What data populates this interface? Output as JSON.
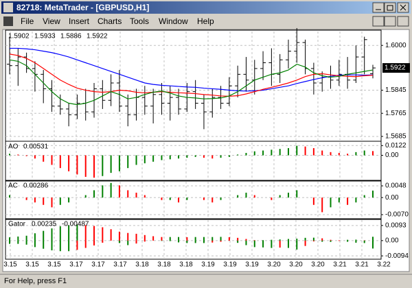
{
  "window": {
    "title": "82718: MetaTrader - [GBPUSD,H1]",
    "menu": [
      "File",
      "View",
      "Insert",
      "Charts",
      "Tools",
      "Window",
      "Help"
    ]
  },
  "status_bar": "For Help, press F1",
  "time_labels": [
    "3.15",
    "3.15",
    "3.15",
    "3.17",
    "3.17",
    "3.17",
    "3.18",
    "3.18",
    "3.18",
    "3.19",
    "3.19",
    "3.19",
    "3.20",
    "3.20",
    "3.20",
    "3.21",
    "3.21",
    "3.22"
  ],
  "chart_data": [
    {
      "type": "ohlc",
      "color": "#000000",
      "grid": true,
      "ylim": [
        1.5673,
        1.6048
      ],
      "yticks": [
        {
          "value": 1.6,
          "label": "1.6000"
        },
        1.5845,
        1.5765,
        1.5685
      ],
      "open": [
        1.5935,
        1.593,
        1.596,
        1.592,
        1.59,
        1.585,
        1.579,
        1.578,
        1.576,
        1.58,
        1.577,
        1.585,
        1.581,
        1.587,
        1.579,
        1.576,
        1.582,
        1.579,
        1.583,
        1.58,
        1.582,
        1.578,
        1.584,
        1.58,
        1.577,
        1.582,
        1.58,
        1.586,
        1.59,
        1.588,
        1.592,
        1.594,
        1.59,
        1.595,
        1.598,
        1.601,
        1.592,
        1.587,
        1.589,
        1.588,
        1.59,
        1.588,
        1.596,
        1.5902
      ],
      "high": [
        1.603,
        1.599,
        1.5975,
        1.5945,
        1.5915,
        1.588,
        1.583,
        1.58,
        1.583,
        1.585,
        1.587,
        1.588,
        1.59,
        1.5915,
        1.583,
        1.585,
        1.586,
        1.585,
        1.587,
        1.586,
        1.585,
        1.587,
        1.588,
        1.583,
        1.585,
        1.586,
        1.589,
        1.593,
        1.596,
        1.595,
        1.598,
        1.599,
        1.597,
        1.602,
        1.606,
        1.602,
        1.594,
        1.591,
        1.593,
        1.595,
        1.596,
        1.6,
        1.603,
        1.5933
      ],
      "low": [
        1.59,
        1.586,
        1.5905,
        1.584,
        1.58,
        1.577,
        1.576,
        1.572,
        1.5745,
        1.574,
        1.575,
        1.578,
        1.579,
        1.577,
        1.572,
        1.574,
        1.576,
        1.573,
        1.576,
        1.574,
        1.576,
        1.577,
        1.578,
        1.571,
        1.575,
        1.578,
        1.579,
        1.582,
        1.584,
        1.583,
        1.588,
        1.586,
        1.587,
        1.592,
        1.594,
        1.59,
        1.583,
        1.584,
        1.585,
        1.586,
        1.585,
        1.587,
        1.59,
        1.5886
      ],
      "close": [
        1.593,
        1.596,
        1.592,
        1.59,
        1.585,
        1.579,
        1.578,
        1.576,
        1.58,
        1.577,
        1.585,
        1.581,
        1.587,
        1.579,
        1.576,
        1.582,
        1.579,
        1.583,
        1.58,
        1.582,
        1.578,
        1.584,
        1.58,
        1.577,
        1.582,
        1.58,
        1.586,
        1.59,
        1.588,
        1.592,
        1.594,
        1.59,
        1.595,
        1.598,
        1.601,
        1.592,
        1.587,
        1.589,
        1.588,
        1.59,
        1.588,
        1.596,
        1.602,
        1.5922
      ],
      "series": [
        {
          "color": "#0000ff",
          "values": [
            1.599,
            1.599,
            1.5988,
            1.5985,
            1.598,
            1.5975,
            1.5968,
            1.596,
            1.595,
            1.594,
            1.593,
            1.592,
            1.591,
            1.59,
            1.589,
            1.588,
            1.587,
            1.5865,
            1.5862,
            1.586,
            1.5858,
            1.5856,
            1.5855,
            1.5852,
            1.585,
            1.5848,
            1.5845,
            1.5843,
            1.5842,
            1.5843,
            1.5845,
            1.585,
            1.5855,
            1.586,
            1.5868,
            1.5875,
            1.5882,
            1.5888,
            1.5893,
            1.5897,
            1.5898,
            1.5898,
            1.5897,
            1.5898
          ]
        },
        {
          "color": "#ff0000",
          "values": [
            1.597,
            1.5965,
            1.5955,
            1.594,
            1.592,
            1.59,
            1.588,
            1.5865,
            1.5852,
            1.5845,
            1.584,
            1.5838,
            1.584,
            1.5845,
            1.5843,
            1.5838,
            1.5836,
            1.5838,
            1.584,
            1.5838,
            1.5836,
            1.5835,
            1.5833,
            1.583,
            1.5828,
            1.5825,
            1.5824,
            1.5826,
            1.5832,
            1.584,
            1.5848,
            1.5855,
            1.5862,
            1.587,
            1.588,
            1.5892,
            1.59,
            1.5902,
            1.5898,
            1.5895,
            1.5893,
            1.5892,
            1.5895,
            1.5897
          ]
        },
        {
          "color": "#008000",
          "values": [
            1.595,
            1.5945,
            1.593,
            1.59,
            1.587,
            1.584,
            1.5815,
            1.58,
            1.5795,
            1.58,
            1.581,
            1.5825,
            1.584,
            1.583,
            1.5815,
            1.582,
            1.583,
            1.5838,
            1.5842,
            1.5835,
            1.5825,
            1.582,
            1.5818,
            1.5815,
            1.5816,
            1.5818,
            1.5825,
            1.584,
            1.586,
            1.588,
            1.589,
            1.59,
            1.5905,
            1.5915,
            1.5935,
            1.5925,
            1.5905,
            1.5895,
            1.589,
            1.5893,
            1.59,
            1.5905,
            1.591,
            1.5915
          ]
        }
      ]
    },
    {
      "type": "oscillator",
      "title": "AO",
      "up_color": "#008000",
      "down_color": "#ff0000",
      "ylim": [
        -0.0305,
        0.0159
      ],
      "yticks": [
        0.0122,
        {
          "value": 0,
          "label": "0.00"
        }
      ],
      "values": [
        0.002,
        0.001,
        -0.001,
        -0.004,
        -0.008,
        -0.012,
        -0.016,
        -0.02,
        -0.024,
        -0.027,
        -0.028,
        -0.026,
        -0.022,
        -0.02,
        -0.016,
        -0.012,
        -0.01,
        -0.008,
        -0.006,
        -0.005,
        -0.004,
        -0.003,
        -0.002,
        -0.003,
        -0.004,
        -0.003,
        -0.002,
        0.001,
        0.003,
        0.005,
        0.006,
        0.007,
        0.008,
        0.009,
        0.012,
        0.011,
        0.009,
        0.006,
        0.004,
        0.003,
        0.002,
        0.004,
        0.006,
        0.00531
      ]
    },
    {
      "type": "oscillator",
      "title": "AC",
      "up_color": "#008000",
      "down_color": "#ff0000",
      "ylim": [
        -0.0084,
        0.0065
      ],
      "yticks": [
        0.0048,
        {
          "value": 0,
          "label": "0.00"
        },
        {
          "value": -0.007,
          "label": "-0.0070"
        }
      ],
      "values": [
        0.001,
        0,
        -0.001,
        -0.002,
        -0.003,
        -0.004,
        -0.003,
        -0.002,
        0,
        0.001,
        0.003,
        0.005,
        0.006,
        0.005,
        0.003,
        0.002,
        0.001,
        0,
        -0.001,
        -0.001,
        -0.002,
        -0.001,
        0,
        -0.001,
        -0.002,
        -0.001,
        0,
        0.001,
        0.002,
        0.001,
        0,
        -0.001,
        0.001,
        0.002,
        0.003,
        0,
        -0.003,
        -0.006,
        -0.004,
        -0.002,
        -0.003,
        -0.002,
        0.001,
        0.00286
      ]
    },
    {
      "type": "gator",
      "title": "Gator",
      "up_color": "#008000",
      "down_color": "#ff0000",
      "ylim": [
        -0.0106,
        0.0126
      ],
      "yticks": [
        0.0093,
        {
          "value": 0,
          "label": "0.00"
        },
        -0.0094
      ],
      "series": [
        {
          "values": [
            0.002,
            0.0025,
            0.003,
            0.0045,
            0.006,
            0.0075,
            0.0088,
            0.0095,
            0.0098,
            0.0095,
            0.009,
            0.0082,
            0.007,
            0.0055,
            0.0047,
            0.0042,
            0.0034,
            0.0027,
            0.0022,
            0.0022,
            0.0022,
            0.0021,
            0.0022,
            0.0022,
            0.0022,
            0.0023,
            0.0021,
            0.0017,
            0.001,
            0.0003,
            0.0003,
            0.0005,
            0.0007,
            0.001,
            0.0012,
            0.0017,
            0.0018,
            0.0014,
            0.0005,
            0.0002,
            0.0005,
            0.0006,
            0.0002,
            0.00235
          ]
        },
        {
          "values": [
            -0.002,
            -0.002,
            -0.0025,
            -0.004,
            -0.005,
            -0.006,
            -0.0065,
            -0.0065,
            -0.0057,
            -0.0045,
            -0.003,
            -0.0013,
            0,
            -0.0015,
            -0.0028,
            -0.0018,
            -0.0006,
            0,
            -0.0002,
            -0.0003,
            -0.0011,
            -0.0015,
            -0.0015,
            -0.0015,
            -0.0012,
            -0.0007,
            -0.0001,
            -0.0014,
            -0.0028,
            -0.004,
            -0.0042,
            -0.0045,
            -0.0043,
            -0.0045,
            -0.0055,
            -0.0033,
            -0.0005,
            -0.0007,
            -0.0008,
            -0.0002,
            -0.0007,
            -0.0013,
            -0.0015,
            -0.00487
          ]
        }
      ]
    }
  ]
}
